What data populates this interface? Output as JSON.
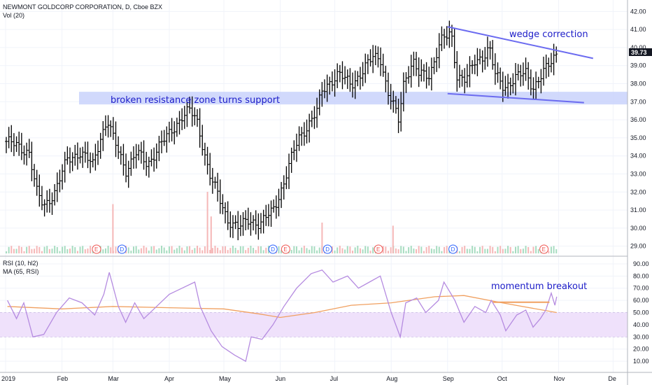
{
  "header": {
    "symbol_title": "NEWMONT GOLDCORP CORPORATION, D, Cboe BZX",
    "volume_label": "Vol (20)",
    "rsi_label": "RSI (10, hl2)",
    "ma_label": "MA (65, RSI)"
  },
  "annotations": {
    "support_text": "broken resistance zone turns support",
    "wedge_text": "wedge correction",
    "momentum_text": "momentum breakout"
  },
  "last_price_label": "39.73",
  "colors": {
    "bar": "#000000",
    "support_zone": "#c9d2fb",
    "wedge_line": "#6b6bf0",
    "rsi_line": "#b58be0",
    "ma_line": "#f0a060",
    "rsi_band": "#efe1fb",
    "breakout_line": "#f0a060",
    "annotation_text": "#1c1cc8",
    "up_volume": "#a7dcc0",
    "down_volume": "#f5b7b7"
  },
  "chart_data": [
    {
      "type": "ohlc",
      "title": "NEWMONT GOLDCORP CORPORATION, D, Cboe BZX",
      "y_ticks": [
        "29.00",
        "30.00",
        "31.00",
        "32.00",
        "33.00",
        "34.00",
        "35.00",
        "36.00",
        "37.00",
        "38.00",
        "39.00",
        "40.00",
        "41.00",
        "42.00"
      ],
      "ylim": [
        28.6,
        42.4
      ],
      "x_labels": [
        "2019",
        "Feb",
        "Mar",
        "Apr",
        "May",
        "Jun",
        "Jul",
        "Aug",
        "Sep",
        "Oct",
        "Nov",
        "De"
      ],
      "last_close": 39.73,
      "price_path": [
        {
          "date": "2019-01-02",
          "close": 34.8
        },
        {
          "date": "2019-01-08",
          "close": 34.5
        },
        {
          "date": "2019-01-14",
          "close": 34.2
        },
        {
          "date": "2019-01-18",
          "close": 32.0
        },
        {
          "date": "2019-01-22",
          "close": 31.2
        },
        {
          "date": "2019-01-28",
          "close": 32.0
        },
        {
          "date": "2019-02-04",
          "close": 33.8
        },
        {
          "date": "2019-02-11",
          "close": 34.2
        },
        {
          "date": "2019-02-18",
          "close": 33.5
        },
        {
          "date": "2019-02-22",
          "close": 35.0
        },
        {
          "date": "2019-02-26",
          "close": 36.0
        },
        {
          "date": "2019-03-01",
          "close": 35.0
        },
        {
          "date": "2019-03-05",
          "close": 34.0
        },
        {
          "date": "2019-03-08",
          "close": 33.2
        },
        {
          "date": "2019-03-14",
          "close": 34.2
        },
        {
          "date": "2019-03-20",
          "close": 33.5
        },
        {
          "date": "2019-03-26",
          "close": 34.5
        },
        {
          "date": "2019-04-01",
          "close": 35.2
        },
        {
          "date": "2019-04-08",
          "close": 36.2
        },
        {
          "date": "2019-04-12",
          "close": 36.5
        },
        {
          "date": "2019-04-16",
          "close": 36.0
        },
        {
          "date": "2019-04-18",
          "close": 35.2
        },
        {
          "date": "2019-04-23",
          "close": 33.0
        },
        {
          "date": "2019-04-29",
          "close": 31.5
        },
        {
          "date": "2019-05-03",
          "close": 30.5
        },
        {
          "date": "2019-05-09",
          "close": 30.0
        },
        {
          "date": "2019-05-15",
          "close": 30.5
        },
        {
          "date": "2019-05-21",
          "close": 30.2
        },
        {
          "date": "2019-05-28",
          "close": 31.0
        },
        {
          "date": "2019-06-03",
          "close": 32.5
        },
        {
          "date": "2019-06-06",
          "close": 33.5
        },
        {
          "date": "2019-06-11",
          "close": 35.0
        },
        {
          "date": "2019-06-17",
          "close": 35.8
        },
        {
          "date": "2019-06-21",
          "close": 36.4
        },
        {
          "date": "2019-06-24",
          "close": 37.6
        },
        {
          "date": "2019-06-27",
          "close": 38.0
        },
        {
          "date": "2019-07-03",
          "close": 38.5
        },
        {
          "date": "2019-07-10",
          "close": 38.0
        },
        {
          "date": "2019-07-16",
          "close": 38.6
        },
        {
          "date": "2019-07-22",
          "close": 39.5
        },
        {
          "date": "2019-07-26",
          "close": 39.5
        },
        {
          "date": "2019-07-30",
          "close": 37.5
        },
        {
          "date": "2019-08-02",
          "close": 36.8
        },
        {
          "date": "2019-08-05",
          "close": 36.0
        },
        {
          "date": "2019-08-08",
          "close": 38.2
        },
        {
          "date": "2019-08-13",
          "close": 39.2
        },
        {
          "date": "2019-08-16",
          "close": 38.5
        },
        {
          "date": "2019-08-22",
          "close": 38.5
        },
        {
          "date": "2019-08-28",
          "close": 40.3
        },
        {
          "date": "2019-09-03",
          "close": 40.8
        },
        {
          "date": "2019-09-06",
          "close": 38.5
        },
        {
          "date": "2019-09-11",
          "close": 38.2
        },
        {
          "date": "2019-09-16",
          "close": 39.2
        },
        {
          "date": "2019-09-20",
          "close": 39.5
        },
        {
          "date": "2019-09-24",
          "close": 40.0
        },
        {
          "date": "2019-09-27",
          "close": 38.5
        },
        {
          "date": "2019-10-02",
          "close": 37.8
        },
        {
          "date": "2019-10-08",
          "close": 38.3
        },
        {
          "date": "2019-10-14",
          "close": 38.6
        },
        {
          "date": "2019-10-18",
          "close": 37.8
        },
        {
          "date": "2019-10-23",
          "close": 38.5
        },
        {
          "date": "2019-10-28",
          "close": 39.2
        },
        {
          "date": "2019-10-31",
          "close": 39.73
        }
      ],
      "annotations": [
        "broken resistance zone turns support",
        "wedge correction"
      ],
      "support_zone": [
        36.85,
        37.55
      ],
      "wedge_upper": {
        "from": {
          "date": "2019-09-01",
          "value": 41.15
        },
        "to": {
          "date": "2019-11-20",
          "value": 39.4
        }
      },
      "wedge_lower": {
        "from": {
          "date": "2019-09-01",
          "value": 37.45
        },
        "to": {
          "date": "2019-11-15",
          "value": 36.95
        }
      },
      "volume_spikes": [
        {
          "date": "2019-03-01",
          "level": 0.8
        },
        {
          "date": "2019-04-22",
          "level": 1.0
        },
        {
          "date": "2019-04-24",
          "level": 0.6
        },
        {
          "date": "2019-06-24",
          "level": 0.5
        },
        {
          "date": "2019-08-02",
          "level": 0.45
        }
      ],
      "event_markers": [
        {
          "date": "2019-02-20",
          "label": "E"
        },
        {
          "date": "2019-03-06",
          "label": "D"
        },
        {
          "date": "2019-05-28",
          "label": "D"
        },
        {
          "date": "2019-06-04",
          "label": "E"
        },
        {
          "date": "2019-06-27",
          "label": "D"
        },
        {
          "date": "2019-07-25",
          "label": "E"
        },
        {
          "date": "2019-09-04",
          "label": "D"
        },
        {
          "date": "2019-10-24",
          "label": "E"
        }
      ]
    },
    {
      "type": "line",
      "series": [
        {
          "name": "RSI (10, hl2)",
          "points": [
            {
              "date": "2019-01-02",
              "value": 60
            },
            {
              "date": "2019-01-07",
              "value": 45
            },
            {
              "date": "2019-01-11",
              "value": 58
            },
            {
              "date": "2019-01-16",
              "value": 30
            },
            {
              "date": "2019-01-22",
              "value": 32
            },
            {
              "date": "2019-01-29",
              "value": 50
            },
            {
              "date": "2019-02-05",
              "value": 62
            },
            {
              "date": "2019-02-12",
              "value": 58
            },
            {
              "date": "2019-02-19",
              "value": 48
            },
            {
              "date": "2019-02-24",
              "value": 65
            },
            {
              "date": "2019-02-27",
              "value": 83
            },
            {
              "date": "2019-03-04",
              "value": 55
            },
            {
              "date": "2019-03-08",
              "value": 42
            },
            {
              "date": "2019-03-13",
              "value": 58
            },
            {
              "date": "2019-03-18",
              "value": 45
            },
            {
              "date": "2019-03-25",
              "value": 55
            },
            {
              "date": "2019-04-01",
              "value": 65
            },
            {
              "date": "2019-04-08",
              "value": 70
            },
            {
              "date": "2019-04-15",
              "value": 75
            },
            {
              "date": "2019-04-18",
              "value": 55
            },
            {
              "date": "2019-04-24",
              "value": 35
            },
            {
              "date": "2019-04-30",
              "value": 22
            },
            {
              "date": "2019-05-07",
              "value": 15
            },
            {
              "date": "2019-05-13",
              "value": 10
            },
            {
              "date": "2019-05-16",
              "value": 30
            },
            {
              "date": "2019-05-22",
              "value": 28
            },
            {
              "date": "2019-05-28",
              "value": 40
            },
            {
              "date": "2019-06-03",
              "value": 55
            },
            {
              "date": "2019-06-10",
              "value": 70
            },
            {
              "date": "2019-06-18",
              "value": 82
            },
            {
              "date": "2019-06-24",
              "value": 85
            },
            {
              "date": "2019-06-30",
              "value": 75
            },
            {
              "date": "2019-07-08",
              "value": 80
            },
            {
              "date": "2019-07-14",
              "value": 70
            },
            {
              "date": "2019-07-20",
              "value": 75
            },
            {
              "date": "2019-07-26",
              "value": 80
            },
            {
              "date": "2019-08-01",
              "value": 50
            },
            {
              "date": "2019-08-06",
              "value": 30
            },
            {
              "date": "2019-08-09",
              "value": 58
            },
            {
              "date": "2019-08-15",
              "value": 62
            },
            {
              "date": "2019-08-20",
              "value": 50
            },
            {
              "date": "2019-08-27",
              "value": 60
            },
            {
              "date": "2019-08-30",
              "value": 75
            },
            {
              "date": "2019-09-05",
              "value": 60
            },
            {
              "date": "2019-09-10",
              "value": 42
            },
            {
              "date": "2019-09-16",
              "value": 55
            },
            {
              "date": "2019-09-22",
              "value": 50
            },
            {
              "date": "2019-09-25",
              "value": 60
            },
            {
              "date": "2019-09-30",
              "value": 48
            },
            {
              "date": "2019-10-03",
              "value": 35
            },
            {
              "date": "2019-10-09",
              "value": 48
            },
            {
              "date": "2019-10-14",
              "value": 52
            },
            {
              "date": "2019-10-18",
              "value": 38
            },
            {
              "date": "2019-10-22",
              "value": 45
            },
            {
              "date": "2019-10-25",
              "value": 52
            },
            {
              "date": "2019-10-28",
              "value": 66
            },
            {
              "date": "2019-10-30",
              "value": 56
            },
            {
              "date": "2019-10-31",
              "value": 63
            }
          ]
        },
        {
          "name": "MA (65, RSI)",
          "points": [
            {
              "date": "2019-01-02",
              "value": 55
            },
            {
              "date": "2019-02-01",
              "value": 53
            },
            {
              "date": "2019-03-01",
              "value": 55
            },
            {
              "date": "2019-04-01",
              "value": 54
            },
            {
              "date": "2019-05-01",
              "value": 53
            },
            {
              "date": "2019-05-20",
              "value": 49
            },
            {
              "date": "2019-06-01",
              "value": 46
            },
            {
              "date": "2019-06-20",
              "value": 50
            },
            {
              "date": "2019-07-10",
              "value": 56
            },
            {
              "date": "2019-08-01",
              "value": 58
            },
            {
              "date": "2019-08-25",
              "value": 63
            },
            {
              "date": "2019-09-10",
              "value": 64
            },
            {
              "date": "2019-10-01",
              "value": 58
            },
            {
              "date": "2019-10-31",
              "value": 50
            }
          ]
        }
      ],
      "y_ticks": [
        "10.00",
        "20.00",
        "30.00",
        "40.00",
        "50.00",
        "60.00",
        "70.00",
        "80.00",
        "90.00"
      ],
      "ylim": [
        2,
        94
      ],
      "band": [
        30,
        50
      ],
      "annotation": "momentum breakout",
      "breakout_line": {
        "value": 58.5,
        "from": "2019-09-26",
        "to": "2019-10-27"
      }
    }
  ]
}
